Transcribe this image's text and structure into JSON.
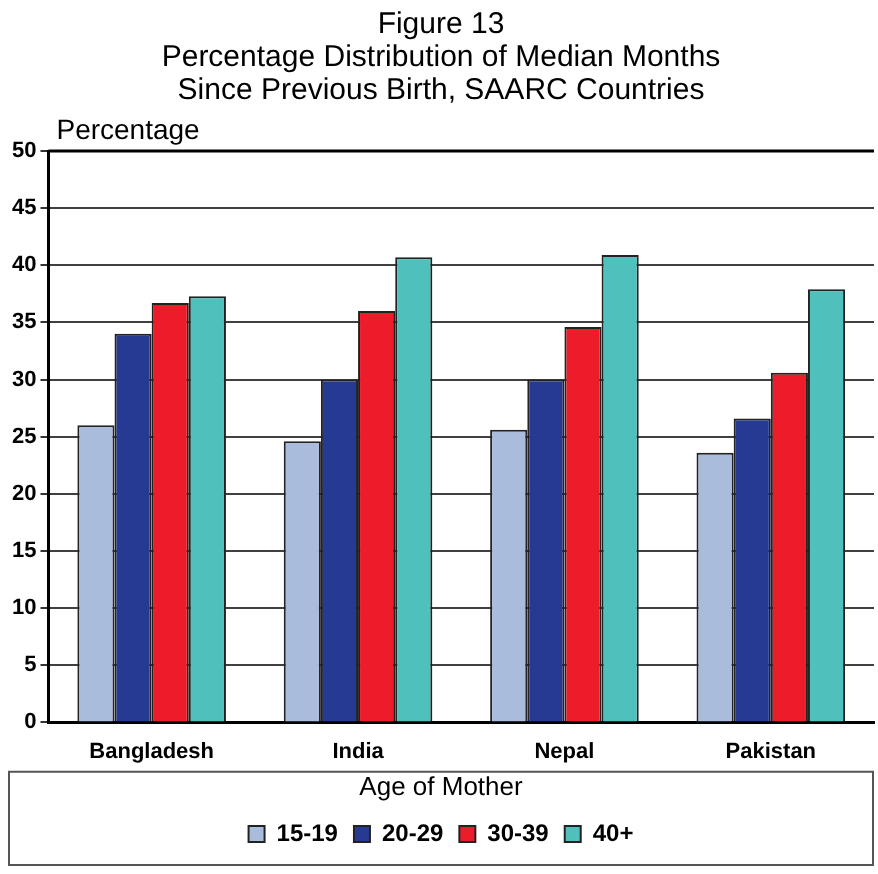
{
  "chart_data": {
    "type": "bar",
    "title": [
      "Figure 13",
      "Percentage Distribution of Median Months",
      "Since Previous Birth, SAARC Countries"
    ],
    "ylabel": "Percentage",
    "legend_title": "Age of Mother",
    "categories": [
      "Bangladesh",
      "India",
      "Nepal",
      "Pakistan"
    ],
    "series": [
      {
        "name": "15-19",
        "color": "#aabcdc",
        "values": [
          26,
          24.6,
          25.6,
          23.6
        ]
      },
      {
        "name": "20-29",
        "color": "#263a94",
        "values": [
          34,
          30,
          30,
          26.6
        ]
      },
      {
        "name": "30-39",
        "color": "#ed1c2b",
        "values": [
          36.7,
          36,
          34.6,
          30.6
        ]
      },
      {
        "name": "40+",
        "color": "#4fc0bb",
        "values": [
          37.3,
          40.7,
          40.9,
          37.9
        ]
      }
    ],
    "ylim": [
      0,
      50
    ],
    "yticks": [
      0,
      5,
      10,
      15,
      20,
      25,
      30,
      35,
      40,
      45,
      50
    ],
    "grid": "y",
    "legend": "bottom"
  }
}
